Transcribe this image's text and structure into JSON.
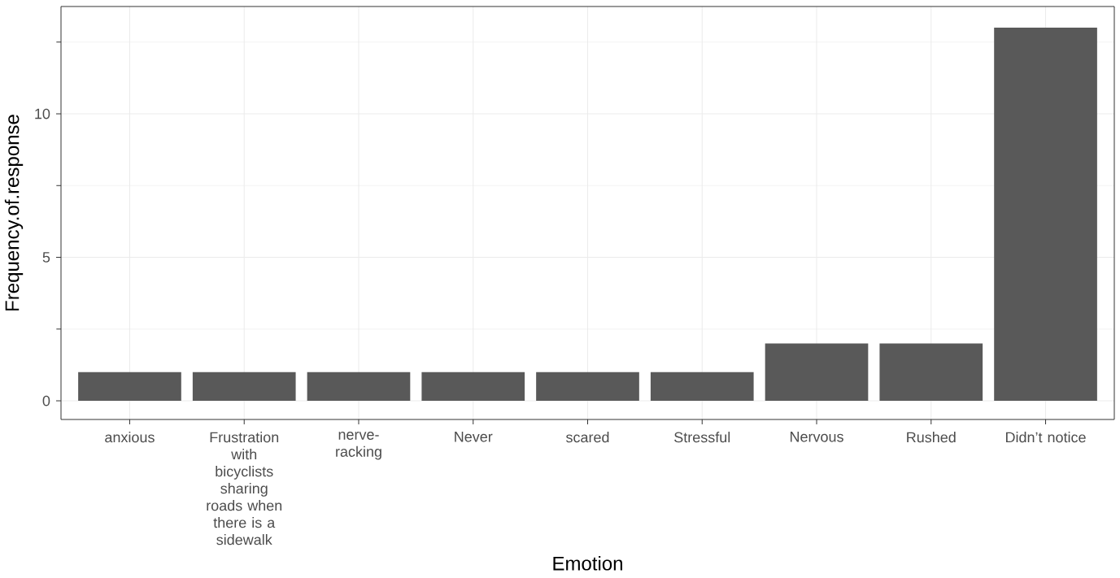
{
  "chart_data": {
    "type": "bar",
    "xlabel": "Emotion",
    "ylabel": "Frequency.of.response",
    "categories": [
      "anxious",
      "Frustration with bicyclists sharing roads when there is a sidewalk",
      "nerve-racking",
      "Never",
      "scared",
      "Stressful",
      "Nervous",
      "Rushed",
      "Didn’t notice"
    ],
    "values": [
      1,
      1,
      1,
      1,
      1,
      1,
      2,
      2,
      13
    ],
    "color": "#595959",
    "ylim": [
      -0.65,
      13.74
    ],
    "yticks": [
      0,
      5,
      10
    ],
    "grid": true
  }
}
